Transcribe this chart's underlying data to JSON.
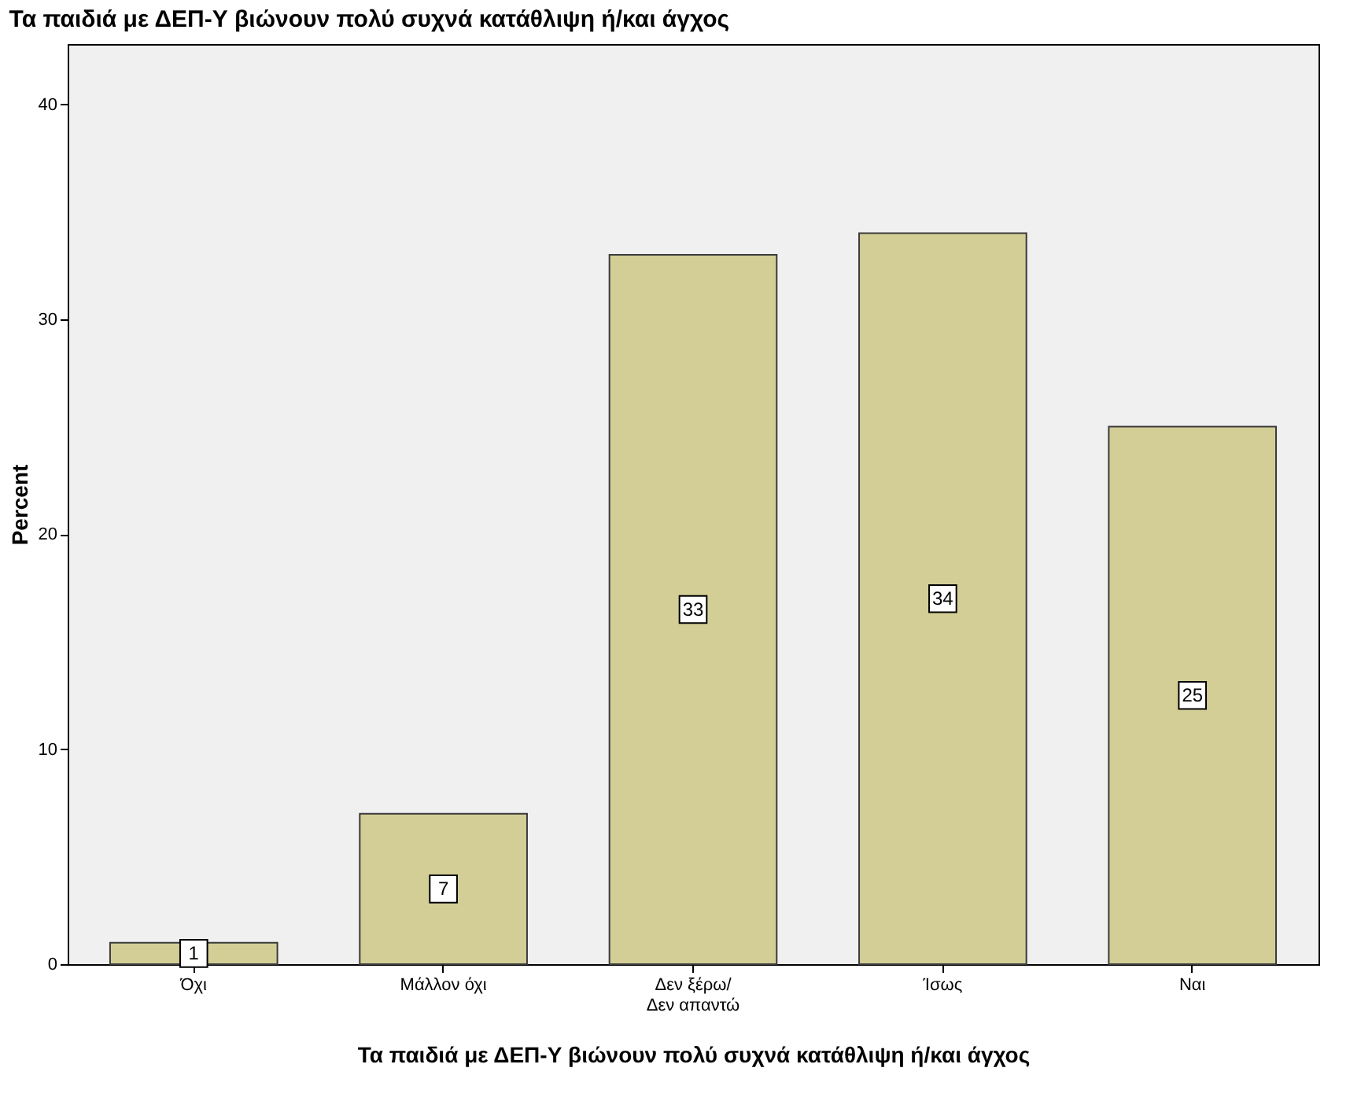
{
  "chart_data": {
    "type": "bar",
    "title": "Τα  παιδιά με ΔΕΠ-Υ βιώνουν πολύ συχνά κατάθλιψη ή/και άγχος",
    "xlabel": "Τα  παιδιά με ΔΕΠ-Υ βιώνουν πολύ συχνά κατάθλιψη ή/και άγχος",
    "ylabel": "Percent",
    "categories": [
      "Όχι",
      "Μάλλον όχι",
      "Δεν ξέρω/ Δεν απαντώ",
      "Ίσως",
      "Ναι"
    ],
    "values": [
      1,
      7,
      33,
      34,
      25
    ],
    "color": "#d3ce96",
    "ylim": [
      0,
      42.8
    ],
    "yticks": [
      0,
      10,
      20,
      30,
      40
    ],
    "grid": false,
    "data_labels": true
  }
}
